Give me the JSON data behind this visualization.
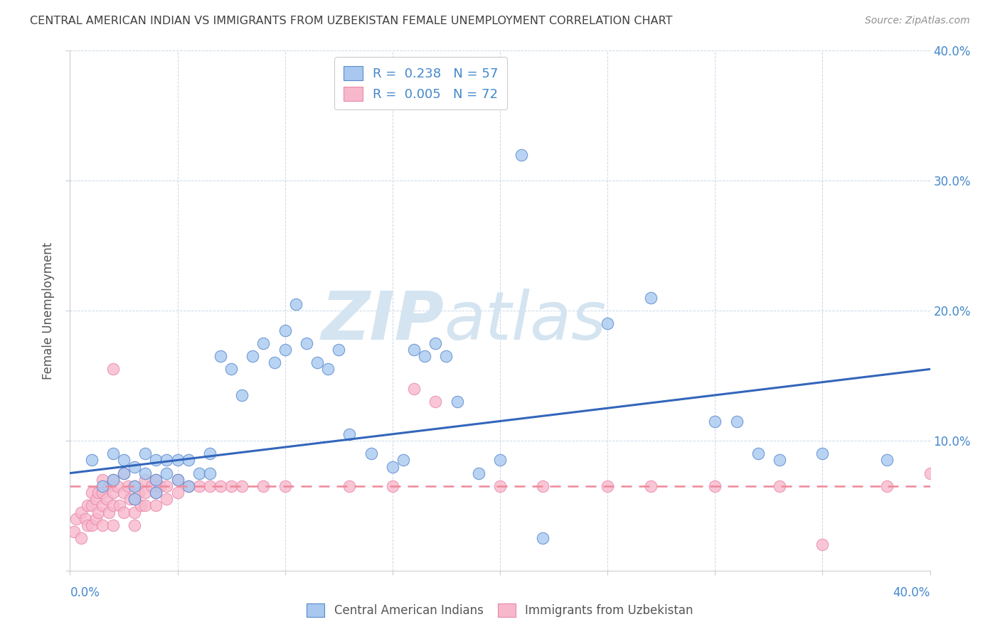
{
  "title": "CENTRAL AMERICAN INDIAN VS IMMIGRANTS FROM UZBEKISTAN FEMALE UNEMPLOYMENT CORRELATION CHART",
  "source": "Source: ZipAtlas.com",
  "ylabel": "Female Unemployment",
  "xlim": [
    0,
    0.4
  ],
  "ylim": [
    0,
    0.4
  ],
  "legend_blue_R": "0.238",
  "legend_blue_N": "57",
  "legend_pink_R": "0.005",
  "legend_pink_N": "72",
  "legend_label_blue": "Central American Indians",
  "legend_label_pink": "Immigrants from Uzbekistan",
  "blue_fill": "#a8c8f0",
  "pink_fill": "#f8b8cc",
  "blue_edge": "#5888cc",
  "pink_edge": "#e888aa",
  "blue_line_color": "#3366bb",
  "pink_line_color": "#ee8899",
  "title_color": "#404040",
  "source_color": "#909090",
  "axis_label_color": "#4488cc",
  "grid_color": "#c8d8e8",
  "watermark_color": "#d4e4f0",
  "blue_trend_x0": 0.0,
  "blue_trend_y0": 0.075,
  "blue_trend_x1": 0.4,
  "blue_trend_y1": 0.155,
  "pink_trend_x0": 0.0,
  "pink_trend_y0": 0.065,
  "pink_trend_x1": 0.4,
  "pink_trend_y1": 0.065,
  "blue_scatter_x": [
    0.01,
    0.015,
    0.02,
    0.02,
    0.025,
    0.025,
    0.03,
    0.03,
    0.03,
    0.035,
    0.035,
    0.04,
    0.04,
    0.04,
    0.045,
    0.045,
    0.05,
    0.05,
    0.055,
    0.055,
    0.06,
    0.065,
    0.065,
    0.07,
    0.075,
    0.08,
    0.085,
    0.09,
    0.095,
    0.1,
    0.1,
    0.105,
    0.11,
    0.115,
    0.12,
    0.125,
    0.13,
    0.14,
    0.15,
    0.155,
    0.16,
    0.165,
    0.17,
    0.175,
    0.18,
    0.19,
    0.2,
    0.21,
    0.22,
    0.25,
    0.27,
    0.3,
    0.31,
    0.32,
    0.33,
    0.35,
    0.38
  ],
  "blue_scatter_y": [
    0.085,
    0.065,
    0.09,
    0.07,
    0.075,
    0.085,
    0.08,
    0.065,
    0.055,
    0.075,
    0.09,
    0.085,
    0.07,
    0.06,
    0.075,
    0.085,
    0.085,
    0.07,
    0.085,
    0.065,
    0.075,
    0.09,
    0.075,
    0.165,
    0.155,
    0.135,
    0.165,
    0.175,
    0.16,
    0.185,
    0.17,
    0.205,
    0.175,
    0.16,
    0.155,
    0.17,
    0.105,
    0.09,
    0.08,
    0.085,
    0.17,
    0.165,
    0.175,
    0.165,
    0.13,
    0.075,
    0.085,
    0.32,
    0.025,
    0.19,
    0.21,
    0.115,
    0.115,
    0.09,
    0.085,
    0.09,
    0.085
  ],
  "pink_scatter_x": [
    0.002,
    0.003,
    0.005,
    0.005,
    0.007,
    0.008,
    0.008,
    0.01,
    0.01,
    0.01,
    0.012,
    0.012,
    0.013,
    0.013,
    0.015,
    0.015,
    0.015,
    0.015,
    0.017,
    0.018,
    0.018,
    0.02,
    0.02,
    0.02,
    0.02,
    0.022,
    0.023,
    0.025,
    0.025,
    0.025,
    0.027,
    0.028,
    0.03,
    0.03,
    0.03,
    0.03,
    0.032,
    0.033,
    0.035,
    0.035,
    0.035,
    0.038,
    0.04,
    0.04,
    0.04,
    0.042,
    0.045,
    0.045,
    0.05,
    0.05,
    0.055,
    0.06,
    0.065,
    0.07,
    0.075,
    0.08,
    0.09,
    0.1,
    0.13,
    0.15,
    0.16,
    0.17,
    0.2,
    0.22,
    0.25,
    0.27,
    0.3,
    0.33,
    0.35,
    0.38,
    0.4,
    0.02
  ],
  "pink_scatter_y": [
    0.03,
    0.04,
    0.045,
    0.025,
    0.04,
    0.05,
    0.035,
    0.06,
    0.05,
    0.035,
    0.055,
    0.04,
    0.06,
    0.045,
    0.07,
    0.06,
    0.05,
    0.035,
    0.055,
    0.065,
    0.045,
    0.07,
    0.06,
    0.05,
    0.035,
    0.065,
    0.05,
    0.075,
    0.06,
    0.045,
    0.065,
    0.055,
    0.065,
    0.055,
    0.045,
    0.035,
    0.06,
    0.05,
    0.07,
    0.06,
    0.05,
    0.065,
    0.07,
    0.06,
    0.05,
    0.065,
    0.065,
    0.055,
    0.07,
    0.06,
    0.065,
    0.065,
    0.065,
    0.065,
    0.065,
    0.065,
    0.065,
    0.065,
    0.065,
    0.065,
    0.14,
    0.13,
    0.065,
    0.065,
    0.065,
    0.065,
    0.065,
    0.065,
    0.02,
    0.065,
    0.075,
    0.155
  ]
}
